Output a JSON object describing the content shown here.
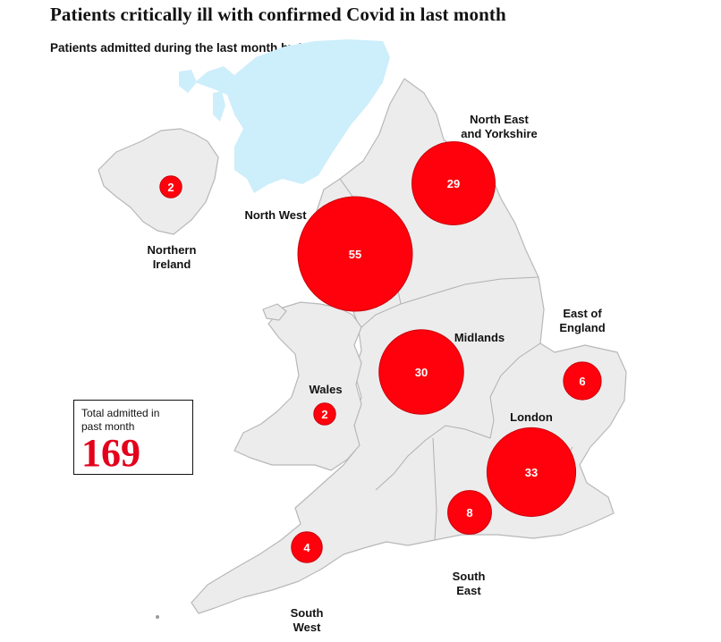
{
  "title": "Patients critically ill with confirmed Covid in last month",
  "subtitle": "Patients admitted during the last month by NHS region",
  "total": {
    "label": "Total admitted in past month",
    "value": "169"
  },
  "colors": {
    "bubble": "#ff000d",
    "land": "#ececec",
    "sea": "#cdeefb",
    "total_value": "#e3001b"
  },
  "regions": [
    {
      "key": "northern-ireland",
      "label_lines": [
        "Northern",
        "Ireland"
      ],
      "value": 2
    },
    {
      "key": "north-west",
      "label_lines": [
        "North West"
      ],
      "value": 55
    },
    {
      "key": "north-east-yorkshire",
      "label_lines": [
        "North East",
        "and Yorkshire"
      ],
      "value": 29
    },
    {
      "key": "midlands",
      "label_lines": [
        "Midlands"
      ],
      "value": 30
    },
    {
      "key": "east-of-england",
      "label_lines": [
        "East of",
        "England"
      ],
      "value": 6
    },
    {
      "key": "wales",
      "label_lines": [
        "Wales"
      ],
      "value": 2
    },
    {
      "key": "london",
      "label_lines": [
        "London"
      ],
      "value": 33
    },
    {
      "key": "south-east",
      "label_lines": [
        "South",
        "East"
      ],
      "value": 8
    },
    {
      "key": "south-west",
      "label_lines": [
        "South",
        "West"
      ],
      "value": 4
    }
  ]
}
